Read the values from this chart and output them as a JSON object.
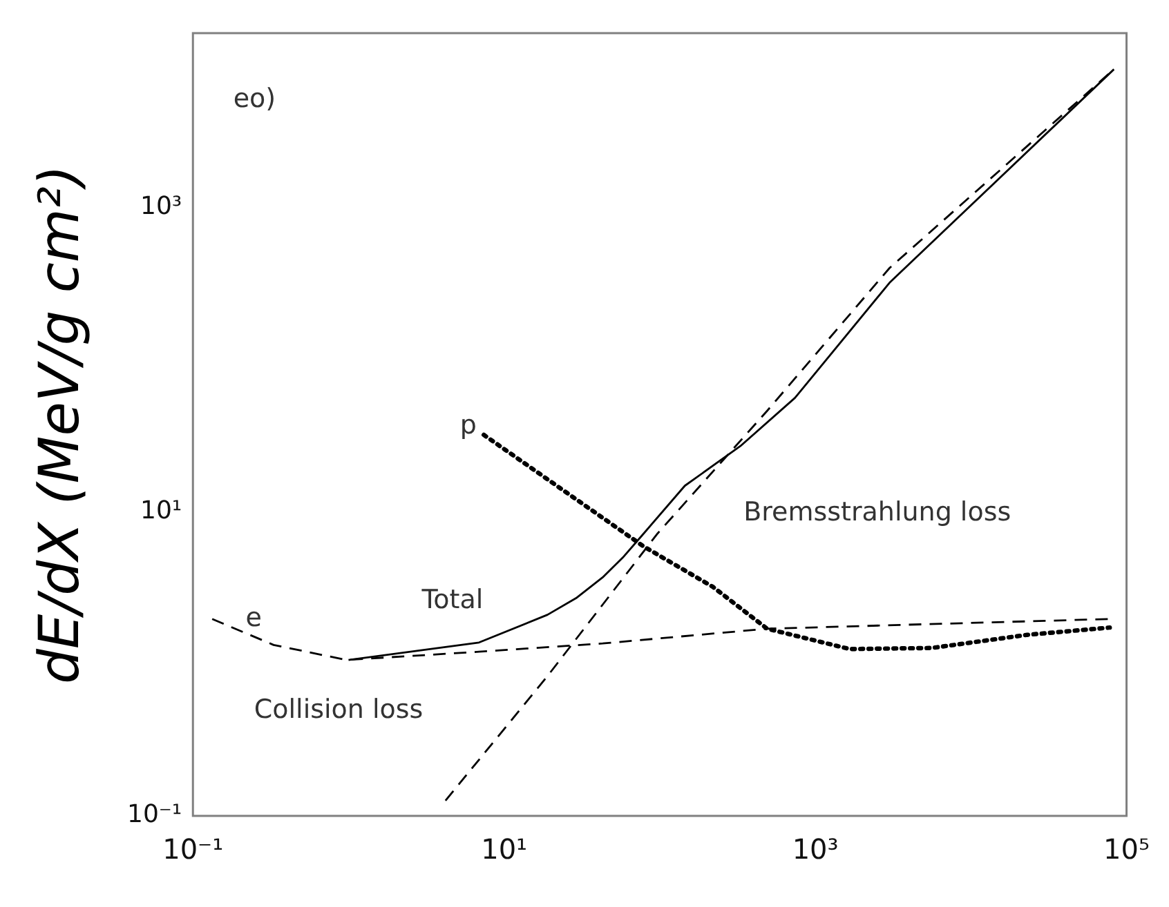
{
  "chart_data": {
    "type": "line",
    "ylabel": "dE/dX (MeV/g cm²)",
    "log": "xy",
    "grid": false,
    "legend": false,
    "marker": "none",
    "xlim": [
      0.1,
      100000
    ],
    "ylim": [
      0.1,
      14000
    ],
    "xticks": [
      {
        "value": 0.1,
        "label": "10⁻¹"
      },
      {
        "value": 10,
        "label": "10¹"
      },
      {
        "value": 1000,
        "label": "10³"
      },
      {
        "value": 100000,
        "label": "10⁵"
      }
    ],
    "yticks": [
      {
        "value": 0.1,
        "label": "10⁻¹"
      },
      {
        "value": 10,
        "label": "10¹"
      },
      {
        "value": 1000,
        "label": "10³"
      }
    ],
    "series": [
      {
        "color": "#000000",
        "line_style": "dashed",
        "x": [
          0.133,
          0.33,
          0.97,
          6.9,
          43,
          490,
          78000
        ],
        "values": [
          1.97,
          1.33,
          1.06,
          1.2,
          1.36,
          1.7,
          1.97
        ]
      },
      {
        "color": "#000000",
        "line_style": "dashed",
        "x": [
          4.2,
          19,
          97,
          490,
          3000,
          83000
        ],
        "values": [
          0.126,
          0.83,
          7.2,
          46,
          400,
          8100
        ]
      },
      {
        "color": "#000000",
        "line_style": "solid",
        "x": [
          1.0,
          6.9,
          19,
          29,
          43,
          58,
          79,
          145,
          330,
          740,
          3000,
          83000
        ],
        "values": [
          1.06,
          1.38,
          2.1,
          2.7,
          3.7,
          5.0,
          7.2,
          14.8,
          27,
          56,
          320,
          8100
        ]
      },
      {
        "color": "#000000",
        "line_style": "dotted",
        "x": [
          7.4,
          79,
          220,
          490,
          1660,
          5600,
          23000,
          78000
        ],
        "values": [
          32,
          5.9,
          3.2,
          1.7,
          1.25,
          1.27,
          1.55,
          1.73
        ]
      }
    ],
    "annotations": [
      "eo)",
      "e",
      "p",
      "Total",
      "Bremsstrahlung loss",
      "Collision loss"
    ]
  }
}
